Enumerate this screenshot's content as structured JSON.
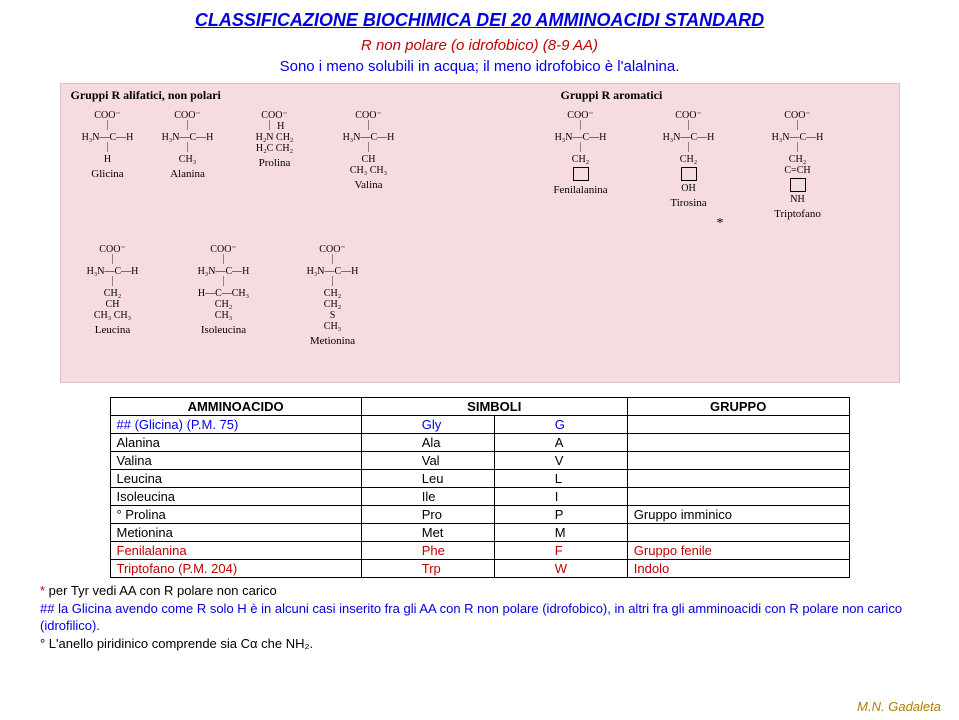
{
  "title": "CLASSIFICAZIONE BIOCHIMICA DEI 20 AMMINOACIDI STANDARD",
  "subtitle": "R non polare (o idrofobico) (8-9 AA)",
  "subtitle2": "Sono i meno solubili in acqua; il meno idrofobico è l'alalnina.",
  "figure": {
    "leftHeading": "Gruppi R alifatici, non polari",
    "rightHeading": "Gruppi R aromatici",
    "starLabel": "*",
    "mols": {
      "gly": {
        "f1": "COO⁻",
        "f2": "H₃N—C—H",
        "f3": "H",
        "name": "Glicina"
      },
      "ala": {
        "f1": "COO⁻",
        "f2": "H₃N—C—H",
        "f3": "CH₃",
        "name": "Alanina"
      },
      "pro": {
        "f1": "COO⁻",
        "f2": "H₂N  CH₂",
        "f3": "H₂C  CH₂",
        "name": "Prolina"
      },
      "val": {
        "f1": "COO⁻",
        "f2": "H₃N—C—H",
        "f3": "CH",
        "f4": "CH₃  CH₃",
        "name": "Valina"
      },
      "leu": {
        "f1": "COO⁻",
        "f2": "H₃N—C—H",
        "f3": "CH₂",
        "f4": "CH",
        "f5": "CH₃  CH₃",
        "name": "Leucina"
      },
      "ile": {
        "f1": "COO⁻",
        "f2": "H₃N—C—H",
        "f3": "H—C—CH₃",
        "f4": "CH₂",
        "f5": "CH₃",
        "name": "Isoleucina"
      },
      "met": {
        "f1": "COO⁻",
        "f2": "H₃N—C—H",
        "f3": "CH₂",
        "f4": "CH₂",
        "f5": "S",
        "f6": "CH₃",
        "name": "Metionina"
      },
      "phe": {
        "f1": "COO⁻",
        "f2": "H₃N—C—H",
        "f3": "CH₂",
        "name": "Fenilalanina"
      },
      "tyr": {
        "f1": "COO⁻",
        "f2": "H₃N—C—H",
        "f3": "CH₂",
        "f4": "OH",
        "name": "Tirosina"
      },
      "trp": {
        "f1": "COO⁻",
        "f2": "H₃N—C—H",
        "f3": "CH₂",
        "f4": "C=CH",
        "f5": "NH",
        "name": "Triptofano"
      }
    }
  },
  "table": {
    "headers": {
      "h1": "AMMINOACIDO",
      "h2": "SIMBOLI",
      "h3": "GRUPPO"
    },
    "rows": [
      {
        "aa": "## (Glicina) (P.M. 75)",
        "s1": "Gly",
        "s2": "G",
        "grp": "",
        "cls": "blue-row"
      },
      {
        "aa": "Alanina",
        "s1": "Ala",
        "s2": "A",
        "grp": "",
        "cls": ""
      },
      {
        "aa": "Valina",
        "s1": "Val",
        "s2": "V",
        "grp": "",
        "cls": ""
      },
      {
        "aa": "Leucina",
        "s1": "Leu",
        "s2": "L",
        "grp": "",
        "cls": ""
      },
      {
        "aa": "Isoleucina",
        "s1": "Ile",
        "s2": "I",
        "grp": "",
        "cls": ""
      },
      {
        "aa": "° Prolina",
        "s1": "Pro",
        "s2": "P",
        "grp": "Gruppo imminico",
        "cls": ""
      },
      {
        "aa": "Metionina",
        "s1": "Met",
        "s2": "M",
        "grp": "",
        "cls": ""
      },
      {
        "aa": "Fenilalanina",
        "s1": "Phe",
        "s2": "F",
        "grp": "Gruppo fenile",
        "cls": "red-row"
      },
      {
        "aa": "Triptofano (P.M. 204)",
        "s1": "Trp",
        "s2": "W",
        "grp": "Indolo",
        "cls": "red-row"
      }
    ]
  },
  "footnotes": {
    "f1a": "*",
    "f1b": " per Tyr vedi AA con R polare non carico",
    "f2a": "##",
    "f2b": " la Glicina avendo come R solo H è in alcuni casi inserito fra gli AA con R non polare (idrofobico), in altri fra gli amminoacidi con R polare non carico (idrofilico).",
    "f3": "° L'anello piridinico comprende sia Cα che NH₂."
  },
  "author": "M.N. Gadaleta"
}
